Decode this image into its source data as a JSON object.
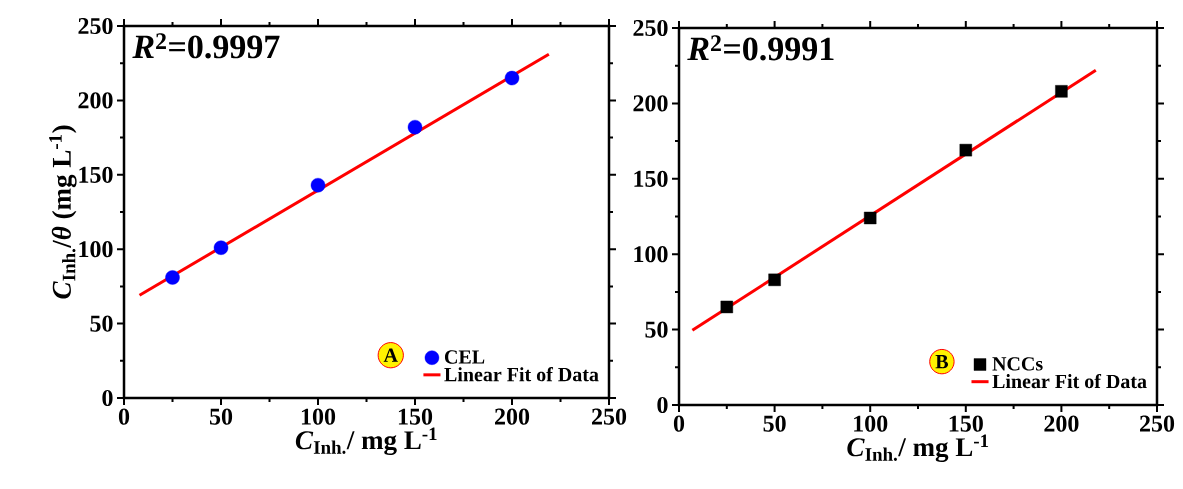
{
  "chart_data": [
    {
      "type": "scatter",
      "title": "*R*$^{2}$=0.9997",
      "xlabel": "*C*$_{Inh.}$/ mg L$^{-1}$",
      "ylabel": "*C*$_{Inh.}$/*θ* (mg L$^{-1}$)",
      "annotations": [
        "A"
      ],
      "xlim": [
        0,
        250
      ],
      "xticks": [
        0,
        50,
        100,
        150,
        200,
        250
      ],
      "ylim": [
        0,
        250
      ],
      "yticks": [
        0,
        50,
        100,
        150,
        200,
        250
      ],
      "legend": "bottom right",
      "series": [
        {
          "name": "CEL",
          "marker": "circle",
          "color": "#0000ff",
          "x": [
            25,
            50,
            100,
            150,
            200
          ],
          "values": [
            81,
            101,
            143,
            182,
            215
          ]
        },
        {
          "name": "Linear Fit of Data",
          "type": "line",
          "marker": "none",
          "color": "#ff0000",
          "x": [
            8,
            219
          ],
          "values": [
            69,
            231
          ]
        }
      ]
    },
    {
      "type": "scatter",
      "title": "*R*$^{2}$=0.9991",
      "xlabel": "*C*$_{Inh.}$/ mg L$^{-1}$",
      "annotations": [
        "B"
      ],
      "xlim": [
        0,
        250
      ],
      "xticks": [
        0,
        50,
        100,
        150,
        200,
        250
      ],
      "ylim": [
        0,
        250
      ],
      "yticks": [
        0,
        50,
        100,
        150,
        200,
        250
      ],
      "legend": "bottom right",
      "series": [
        {
          "name": "NCCs",
          "marker": "square",
          "color": "#000000",
          "x": [
            25,
            50,
            100,
            150,
            200
          ],
          "values": [
            65,
            83,
            124,
            169,
            208
          ]
        },
        {
          "name": "Linear Fit of Data",
          "type": "line",
          "marker": "none",
          "color": "#ff0000",
          "x": [
            7,
            218
          ],
          "values": [
            49.5,
            222
          ]
        }
      ]
    }
  ]
}
